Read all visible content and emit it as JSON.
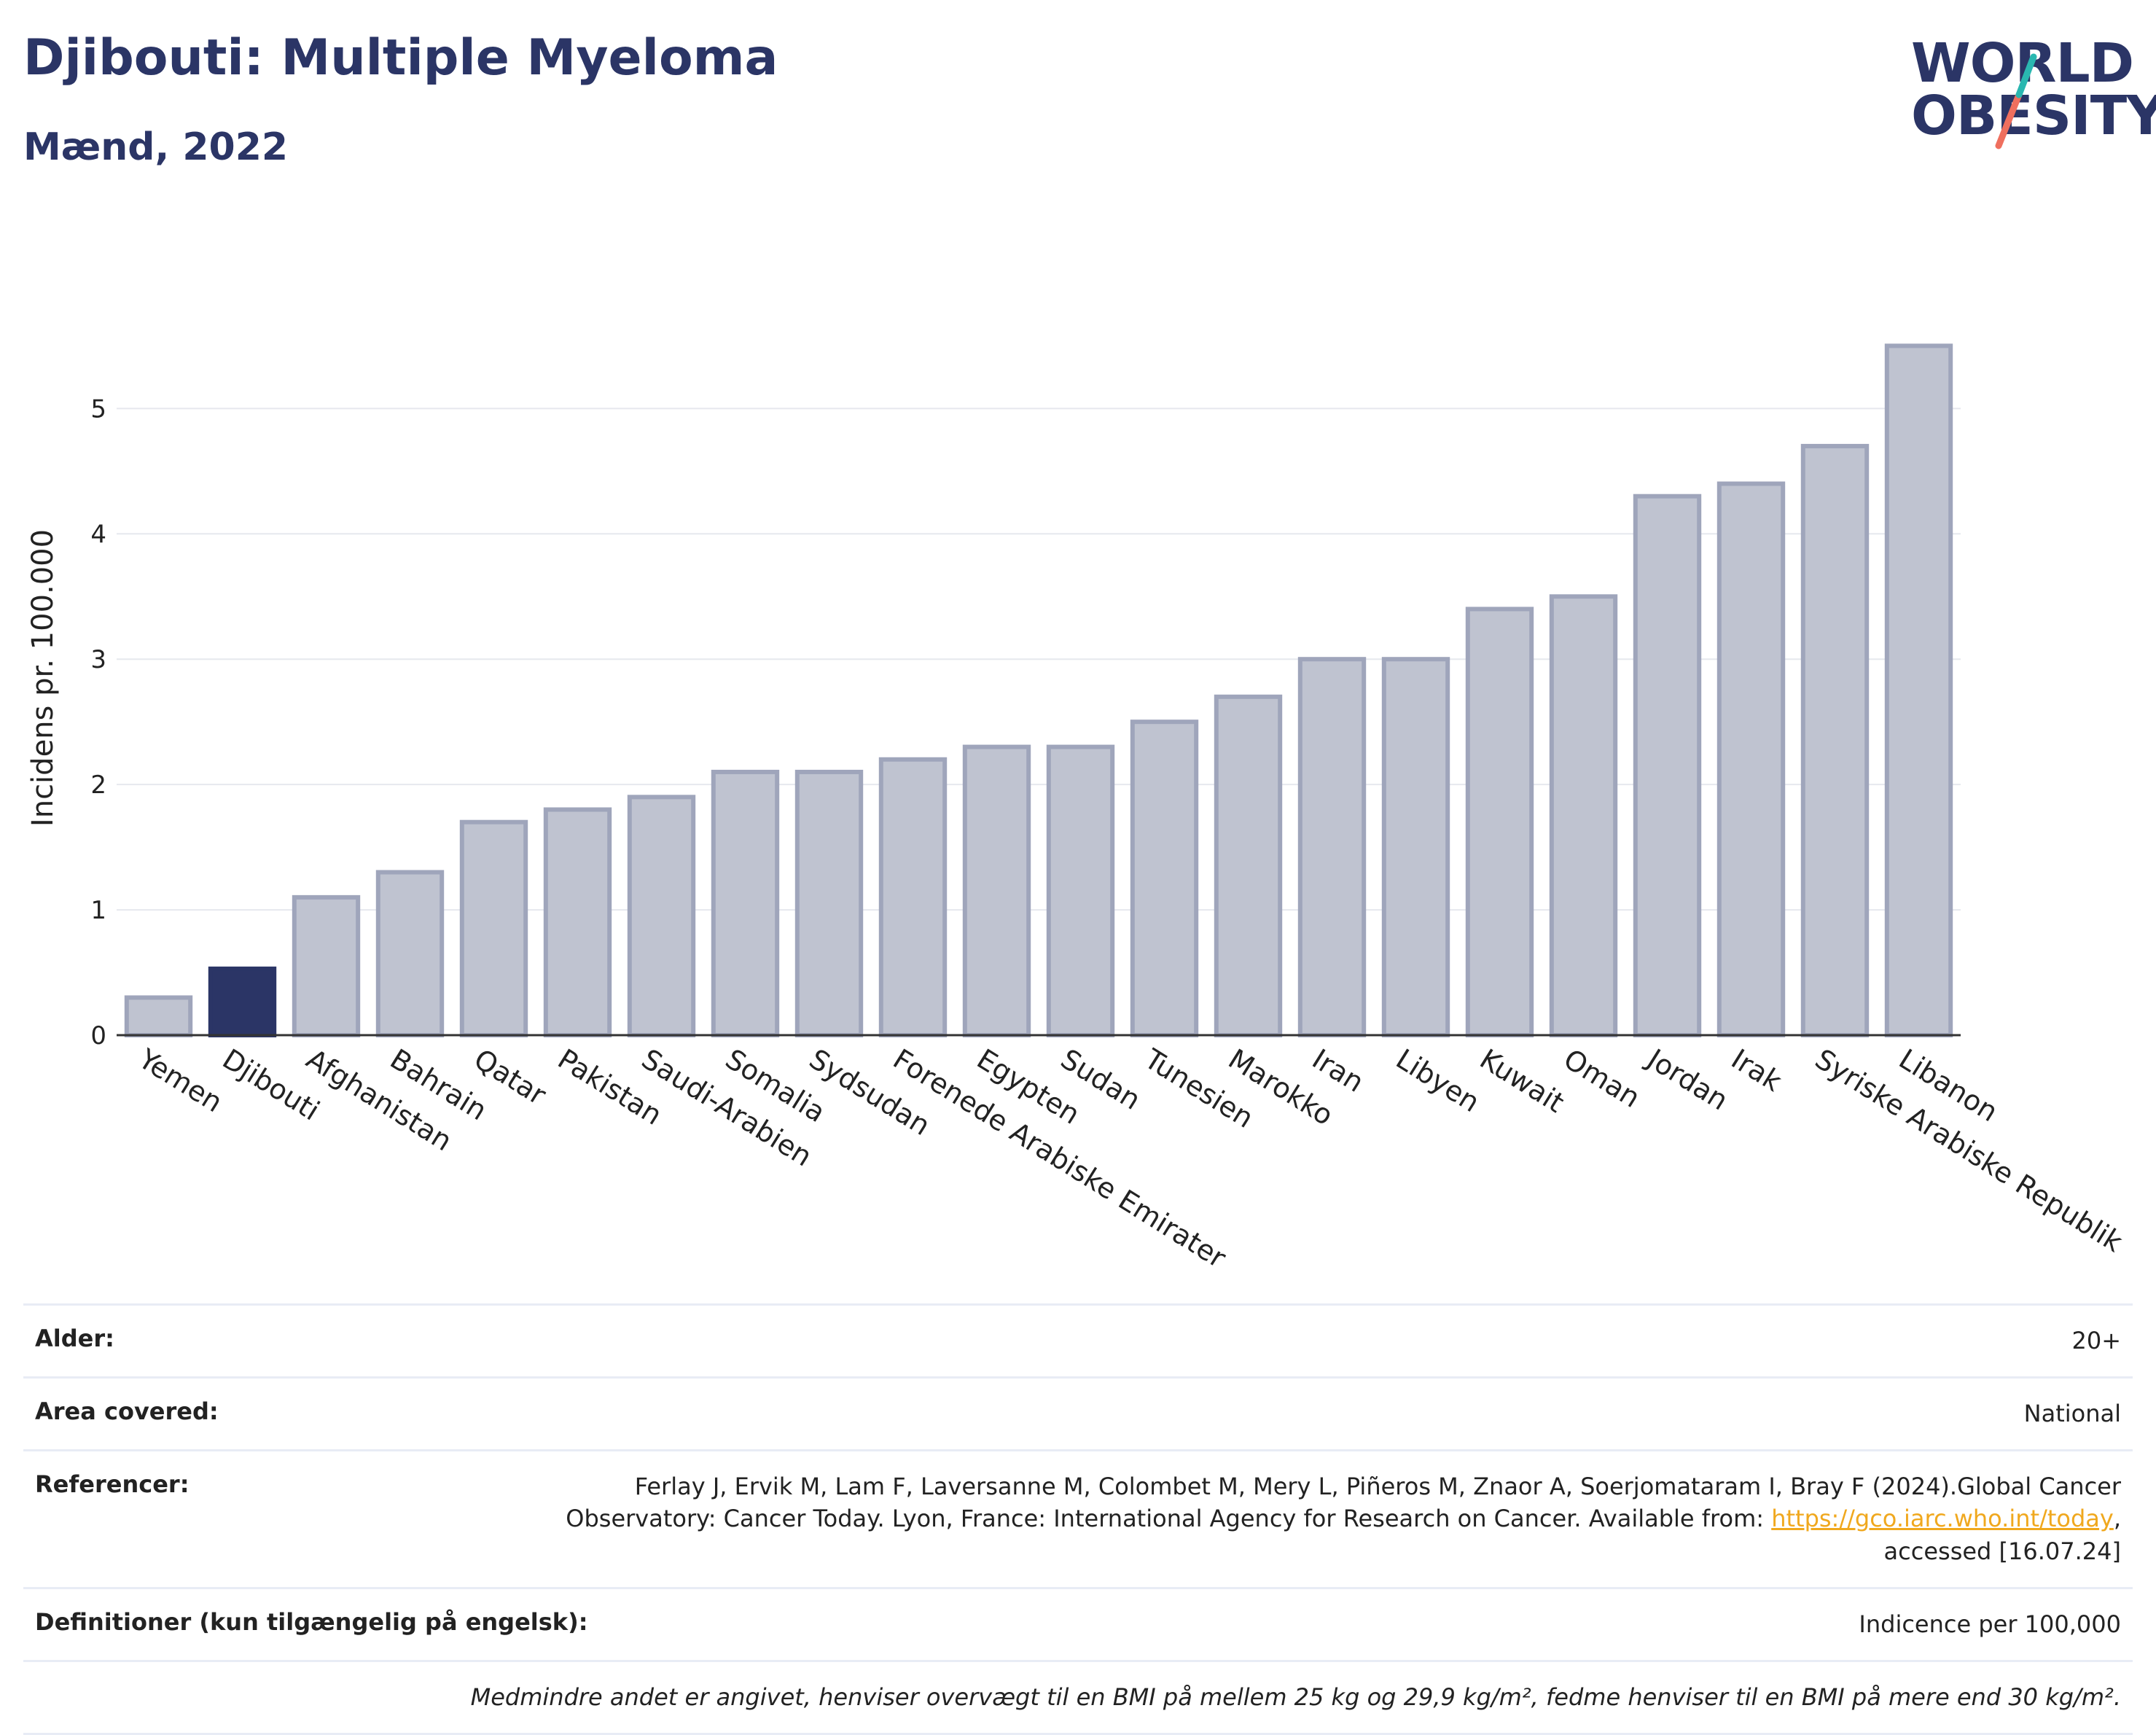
{
  "header": {
    "title": "Djibouti: Multiple Myeloma",
    "subtitle": "Mænd, 2022"
  },
  "logo": {
    "line1": "WORLD",
    "line2": "OBESITY"
  },
  "colors": {
    "highlight": "#2b3566",
    "bar_fill": "#bfc3d0",
    "bar_stroke": "#9fa5bb",
    "brand_teal": "#2ab7b0",
    "brand_coral": "#ef6f5e"
  },
  "chart_data": {
    "type": "bar",
    "categories": [
      "Yemen",
      "Djibouti",
      "Afghanistan",
      "Bahrain",
      "Qatar",
      "Pakistan",
      "Saudi-Arabien",
      "Somalia",
      "Sydsudan",
      "Forenede Arabiske Emirater",
      "Egypten",
      "Sudan",
      "Tunesien",
      "Marokko",
      "Iran",
      "Libyen",
      "Kuwait",
      "Oman",
      "Jordan",
      "Irak",
      "Syriske Arabiske Republik",
      "Libanon"
    ],
    "values": [
      0.3,
      0.53,
      1.1,
      1.3,
      1.7,
      1.8,
      1.9,
      2.1,
      2.1,
      2.2,
      2.3,
      2.3,
      2.5,
      2.7,
      3.0,
      3.0,
      3.4,
      3.5,
      4.3,
      4.4,
      4.7,
      5.5
    ],
    "highlight": "Djibouti",
    "ylabel": "Incidens pr. 100.000",
    "ylim": [
      0,
      5.7
    ],
    "yticks": [
      0,
      1,
      2,
      3,
      4,
      5
    ],
    "grid": true
  },
  "meta": {
    "age_label": "Alder:",
    "age_value": "20+",
    "area_label": "Area covered:",
    "area_value": "National",
    "ref_label": "Referencer:",
    "ref_line1": "Ferlay J, Ervik M, Lam F, Laversanne M, Colombet M, Mery L, Piñeros M, Znaor A, Soerjomataram I, Bray F (2024).Global Cancer",
    "ref_line2_pre": "Observatory: Cancer Today. Lyon, France: International Agency for Research on Cancer. Available from: ",
    "ref_link": "https://gco.iarc.who.int/today",
    "ref_line2_post": ",",
    "ref_line3": "accessed [16.07.24]",
    "def_label": "Definitioner (kun tilgængelig på engelsk):",
    "def_value": "Indicence per 100,000",
    "note": "Medmindre andet er angivet, henviser overvægt til en BMI på mellem 25 kg og 29,9 kg/m², fedme henviser til en BMI på mere end 30 kg/m²."
  }
}
